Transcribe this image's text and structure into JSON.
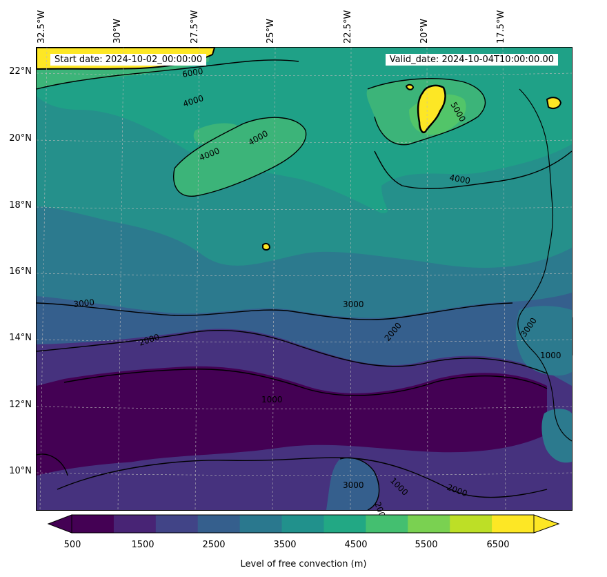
{
  "header": {
    "start_date": "Start date: 2024-10-02_00:00:00",
    "valid_date": "Valid_date: 2024-10-04T10:00:00.00"
  },
  "longitude_ticks": [
    "32.5°W",
    "30°W",
    "27.5°W",
    "25°W",
    "22.5°W",
    "20°W",
    "17.5°W"
  ],
  "latitude_ticks": [
    "22°N",
    "20°N",
    "18°N",
    "16°N",
    "14°N",
    "12°N",
    "10°N"
  ],
  "contour_labels": [
    "4000",
    "4000",
    "4000",
    "4000",
    "5000",
    "6000",
    "3000",
    "3000",
    "3000",
    "2000",
    "2000",
    "2000",
    "1000",
    "1000",
    "1000",
    "3000",
    "2000"
  ],
  "colorbar": {
    "label": "Level of free convection (m)",
    "tick_labels": [
      "500",
      "1500",
      "2500",
      "3500",
      "4500",
      "5500",
      "6500"
    ],
    "colors": [
      "#440154",
      "#482475",
      "#414487",
      "#355f8d",
      "#2a788e",
      "#21918c",
      "#22a884",
      "#44bf70",
      "#7ad151",
      "#bddf26",
      "#fde725"
    ],
    "under_color": "#440154",
    "over_color": "#fde725"
  },
  "legend_colors": {
    "deep": "#440154",
    "low": "#46327e",
    "mid_low": "#365c8d",
    "mid": "#277f8e",
    "mid_high": "#1fa187",
    "high": "#4ac16d",
    "yellow": "#fde725"
  }
}
